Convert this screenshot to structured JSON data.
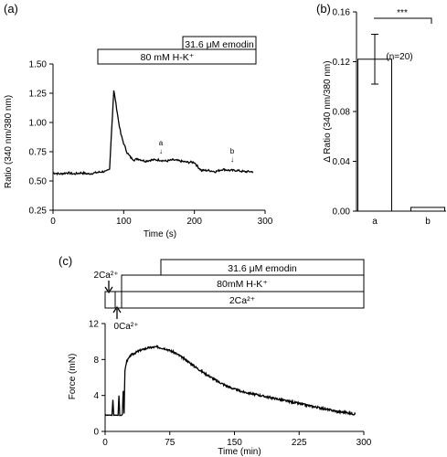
{
  "panels": {
    "a": {
      "panel_label": "(a)",
      "bars": [
        "31.6 μM emodin",
        "80 mM  H-K⁺"
      ],
      "annotations": [
        {
          "text": "a",
          "x": 150,
          "y": 0.7
        },
        {
          "text": "b",
          "x": 250,
          "y": 0.62
        }
      ]
    },
    "b": {
      "panel_label": "(b)",
      "significance": "***",
      "n_label": "(n=20)"
    },
    "c": {
      "panel_label": "(c)",
      "bars": [
        "31.6 μM emodin",
        "80mM H-K⁺",
        "2Ca²⁺"
      ],
      "arrow_labels": {
        "top": "2Ca²⁺",
        "bottom": "0Ca²⁺"
      }
    }
  },
  "chart_data": [
    {
      "type": "line",
      "panel": "a",
      "xlabel": "Time (s)",
      "ylabel": "Ratio (340 nm/380 nm)",
      "xlim": [
        0,
        300
      ],
      "ylim": [
        0.25,
        1.5
      ],
      "xticks": [
        0,
        100,
        200,
        300
      ],
      "yticks": [
        0.25,
        0.5,
        0.75,
        1.0,
        1.25,
        1.5
      ],
      "ytick_labels": [
        "0.25",
        "0.50",
        "0.75",
        "1.00",
        "1.25",
        "1.50"
      ],
      "treatments": [
        {
          "label": "31.6 μM emodin",
          "start": 183,
          "end": 283
        },
        {
          "label": "80 mM  H-K⁺",
          "start": 65,
          "end": 283
        }
      ],
      "series": [
        {
          "x": [
            0,
            10,
            20,
            30,
            40,
            50,
            60,
            70,
            75,
            80,
            83,
            86,
            88,
            90,
            93,
            96,
            100,
            105,
            110,
            115,
            120,
            130,
            140,
            150,
            160,
            170,
            180,
            190,
            200,
            205,
            210,
            220,
            230,
            240,
            250,
            260,
            270,
            283
          ],
          "y": [
            0.57,
            0.56,
            0.57,
            0.56,
            0.57,
            0.56,
            0.57,
            0.58,
            0.58,
            0.6,
            0.95,
            1.27,
            1.2,
            1.12,
            1.0,
            0.9,
            0.82,
            0.74,
            0.7,
            0.68,
            0.69,
            0.67,
            0.68,
            0.68,
            0.67,
            0.68,
            0.67,
            0.66,
            0.66,
            0.62,
            0.59,
            0.59,
            0.58,
            0.6,
            0.59,
            0.59,
            0.58,
            0.58
          ]
        }
      ]
    },
    {
      "type": "bar",
      "panel": "b",
      "ylabel": "Δ Ratio (340 nm/380 nm)",
      "categories": [
        "a",
        "b"
      ],
      "values": [
        0.122,
        0.003
      ],
      "errors": [
        0.02,
        0.001
      ],
      "ylim": [
        0,
        0.16
      ],
      "yticks": [
        0,
        0.04,
        0.08,
        0.12,
        0.16
      ],
      "ytick_labels": [
        "0.00",
        "0.04",
        "0.08",
        "0.12",
        "0.16"
      ]
    },
    {
      "type": "line",
      "panel": "c",
      "xlabel": "Time (min)",
      "ylabel": "Force (mN)",
      "xlim": [
        0,
        300
      ],
      "ylim": [
        0,
        12
      ],
      "xticks": [
        0,
        75,
        150,
        225,
        300
      ],
      "yticks": [
        0,
        4,
        8,
        12
      ],
      "treatments": [
        {
          "label": "31.6 μM emodin",
          "start": 60,
          "end": 300
        },
        {
          "label": "80mM H-K⁺",
          "start": 15,
          "end": 300
        },
        {
          "label": "2Ca²⁺",
          "start": 0,
          "end": 300
        }
      ],
      "series": [
        {
          "x": [
            0,
            8,
            9,
            10,
            11,
            12,
            15,
            16,
            17,
            18,
            19,
            20,
            21,
            22,
            23,
            25,
            30,
            40,
            50,
            60,
            70,
            80,
            90,
            100,
            110,
            120,
            130,
            140,
            150,
            160,
            170,
            180,
            190,
            200,
            210,
            220,
            230,
            240,
            250,
            260,
            270,
            280,
            290
          ],
          "y": [
            1.8,
            1.8,
            3.5,
            1.8,
            1.8,
            1.8,
            1.8,
            4.0,
            1.8,
            1.8,
            1.8,
            1.9,
            4.5,
            2.0,
            6.8,
            7.8,
            8.5,
            9.0,
            9.3,
            9.4,
            9.2,
            8.8,
            8.2,
            7.5,
            6.8,
            6.2,
            5.6,
            5.1,
            4.7,
            4.4,
            4.2,
            4.0,
            3.8,
            3.6,
            3.4,
            3.2,
            3.0,
            2.8,
            2.6,
            2.4,
            2.2,
            2.1,
            1.9
          ]
        }
      ]
    }
  ]
}
